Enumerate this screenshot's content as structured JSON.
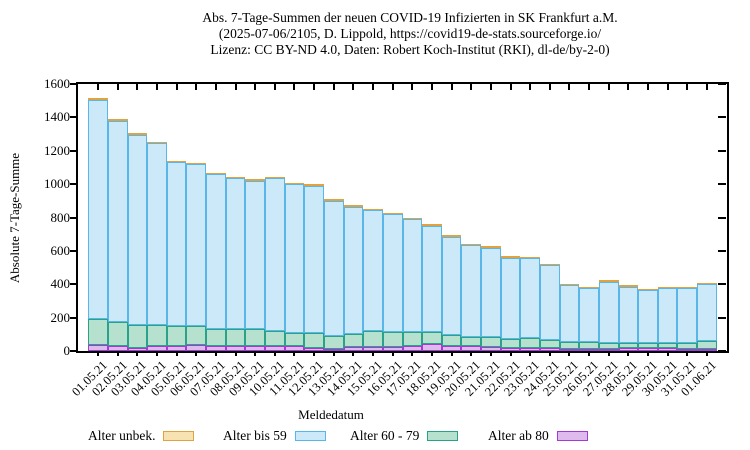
{
  "header": {
    "line1": "Abs. 7-Tage-Summen der neuen COVID-19 Infizierten in SK Frankfurt a.M.",
    "line2": "(2025-07-06/2105, D. Lippold, https://covid19-de-stats.sourceforge.io/",
    "line3": "Lizenz: CC BY-ND 4.0, Daten: Robert Koch-Institut (RKI), dl-de/by-2-0)"
  },
  "chart_data": {
    "type": "bar",
    "stacked": true,
    "title": "Abs. 7-Tage-Summen der neuen COVID-19 Infizierten in SK Frankfurt a.M. (2025-07-06/2105, D. Lippold, https://covid19-de-stats.sourceforge.io/ Lizenz: CC BY-ND 4.0, Daten: Robert Koch-Institut (RKI), dl-de/by-2-0)",
    "xlabel": "Meldedatum",
    "ylabel": "Absolute 7-Tage-Summe",
    "ylim": [
      0,
      1600
    ],
    "yticks": [
      0,
      200,
      400,
      600,
      800,
      1000,
      1200,
      1400,
      1600
    ],
    "grid": false,
    "legend_position": "below",
    "categories": [
      "01.05.21",
      "02.05.21",
      "03.05.21",
      "04.05.21",
      "05.05.21",
      "06.05.21",
      "07.05.21",
      "08.05.21",
      "09.05.21",
      "10.05.21",
      "11.05.21",
      "12.05.21",
      "13.05.21",
      "14.05.21",
      "15.05.21",
      "16.05.21",
      "17.05.21",
      "18.05.21",
      "19.05.21",
      "20.05.21",
      "21.05.21",
      "22.05.21",
      "23.05.21",
      "24.05.21",
      "25.05.21",
      "26.05.21",
      "27.05.21",
      "28.05.21",
      "29.05.21",
      "30.05.21",
      "31.05.21",
      "01.06.21"
    ],
    "series": [
      {
        "name": "Alter ab 80",
        "border": "#a438d8",
        "fill": "#debaed",
        "values": [
          35,
          32,
          20,
          30,
          32,
          38,
          32,
          32,
          28,
          32,
          30,
          20,
          12,
          26,
          26,
          26,
          32,
          44,
          32,
          30,
          26,
          20,
          16,
          16,
          10,
          10,
          12,
          20,
          16,
          16,
          12,
          12
        ]
      },
      {
        "name": "Alter 60 - 79",
        "border": "#29a287",
        "fill": "#b5e1ce",
        "values": [
          157,
          144,
          136,
          126,
          118,
          112,
          100,
          100,
          104,
          88,
          76,
          86,
          80,
          74,
          94,
          90,
          84,
          68,
          64,
          56,
          60,
          52,
          60,
          50,
          46,
          46,
          38,
          30,
          30,
          34,
          38,
          48
        ]
      },
      {
        "name": "Alter bis 59",
        "border": "#58b6e9",
        "fill": "#cce9f9",
        "values": [
          1313,
          1204,
          1139,
          1089,
          980,
          970,
          928,
          903,
          888,
          915,
          894,
          884,
          808,
          765,
          725,
          704,
          674,
          638,
          589,
          549,
          534,
          488,
          479,
          449,
          339,
          319,
          365,
          335,
          319,
          325,
          325,
          340
        ]
      },
      {
        "name": "Alter unbek.",
        "border": "#e0a33f",
        "fill": "#f7e3b2",
        "values": [
          5,
          5,
          5,
          5,
          5,
          5,
          5,
          5,
          5,
          5,
          5,
          5,
          5,
          5,
          5,
          5,
          5,
          5,
          5,
          5,
          5,
          5,
          5,
          5,
          5,
          5,
          5,
          5,
          5,
          5,
          5,
          5
        ]
      }
    ],
    "totals": [
      1510,
      1385,
      1300,
      1250,
      1135,
      1125,
      1065,
      1040,
      1025,
      1040,
      1005,
      995,
      905,
      870,
      850,
      825,
      795,
      755,
      690,
      640,
      625,
      565,
      560,
      520,
      400,
      380,
      420,
      390,
      370,
      380,
      380,
      405
    ]
  },
  "legend": {
    "items": [
      {
        "label": "Alter unbek.",
        "border": "#e0a33f",
        "fill": "#f7e3b2"
      },
      {
        "label": "Alter bis 59",
        "border": "#58b6e9",
        "fill": "#cce9f9"
      },
      {
        "label": "Alter 60 - 79",
        "border": "#29a287",
        "fill": "#b5e1ce"
      },
      {
        "label": "Alter ab 80",
        "border": "#a438d8",
        "fill": "#debaed"
      }
    ]
  },
  "axis_color": "#000000"
}
